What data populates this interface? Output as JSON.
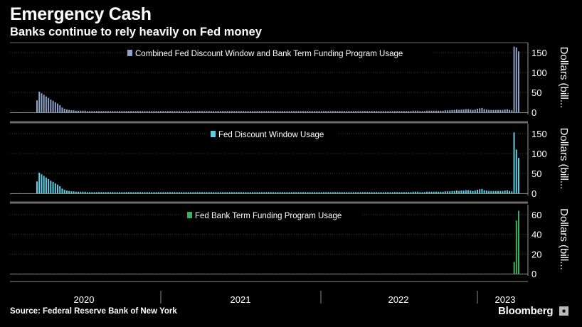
{
  "header": {
    "title": "Emergency Cash",
    "subtitle": "Banks continue to rely heavily on Fed money"
  },
  "footer": {
    "source": "Source: Federal Reserve Bank of New York",
    "brand": "Bloomberg"
  },
  "colors": {
    "background": "#000000",
    "combined": "#8ea2c8",
    "discount": "#5fcde3",
    "btfp": "#3dae5f",
    "grid": "#3a3a3a",
    "separator": "#6b6b6b"
  },
  "chart_data": [
    {
      "type": "bar",
      "legend": "Combined Fed Discount Window and Bank Term Funding Program Usage",
      "ylabel": "Dollars (bill...",
      "yticks": [
        0,
        50,
        100,
        150
      ],
      "ylim": [
        0,
        170
      ],
      "color": "#8ea2c8",
      "values": [
        30,
        52,
        48,
        44,
        40,
        36,
        32,
        29,
        25,
        22,
        18,
        12,
        9,
        7,
        6,
        5,
        5,
        4,
        4,
        4,
        4,
        4,
        3,
        3,
        3,
        3,
        3,
        3,
        3,
        3,
        3,
        3,
        3,
        3,
        3,
        3,
        3,
        3,
        3,
        3,
        3,
        3,
        3,
        3,
        3,
        3,
        3,
        3,
        3,
        3,
        3,
        3,
        3,
        3,
        3,
        3,
        3,
        3,
        3,
        3,
        3,
        3,
        3,
        3,
        3,
        3,
        3,
        3,
        3,
        3,
        3,
        3,
        3,
        3,
        3,
        3,
        3,
        3,
        3,
        3,
        3,
        3,
        3,
        3,
        3,
        3,
        3,
        3,
        3,
        3,
        3,
        3,
        3,
        3,
        3,
        3,
        3,
        3,
        3,
        3,
        3,
        3,
        3,
        3,
        3,
        3,
        3,
        3,
        3,
        3,
        3,
        3,
        3,
        3,
        3,
        3,
        3,
        3,
        3,
        3,
        3,
        3,
        3,
        3,
        3,
        3,
        3,
        3,
        3,
        3,
        3,
        3,
        3,
        3,
        3,
        3,
        3,
        3,
        3,
        3,
        3,
        3,
        3,
        3,
        3,
        3,
        3,
        3,
        3,
        3,
        3,
        3,
        3,
        3,
        3,
        3,
        3,
        3,
        3,
        3,
        3,
        3,
        3,
        3,
        4,
        4,
        4,
        3,
        3,
        3,
        4,
        4,
        4,
        4,
        4,
        4,
        4,
        4,
        5,
        5,
        5,
        6,
        6,
        7,
        6,
        7,
        7,
        8,
        8,
        7,
        6,
        7,
        9,
        10,
        11,
        8,
        7,
        6,
        6,
        6,
        6,
        6,
        6,
        6,
        7,
        8,
        6,
        5,
        165,
        163,
        153
      ]
    },
    {
      "type": "bar",
      "legend": "Fed Discount Window Usage",
      "ylabel": "Dollars (bill...",
      "yticks": [
        0,
        50,
        100,
        150
      ],
      "ylim": [
        0,
        170
      ],
      "color": "#5fcde3",
      "values": [
        30,
        52,
        48,
        44,
        40,
        36,
        32,
        29,
        25,
        22,
        18,
        12,
        9,
        7,
        6,
        5,
        5,
        4,
        4,
        4,
        4,
        4,
        3,
        3,
        3,
        3,
        3,
        3,
        3,
        3,
        3,
        3,
        3,
        3,
        3,
        3,
        3,
        3,
        3,
        3,
        3,
        3,
        3,
        3,
        3,
        3,
        3,
        3,
        3,
        3,
        3,
        3,
        3,
        3,
        3,
        3,
        3,
        3,
        3,
        3,
        3,
        3,
        3,
        3,
        3,
        3,
        3,
        3,
        3,
        3,
        3,
        3,
        3,
        3,
        3,
        3,
        3,
        3,
        3,
        3,
        3,
        3,
        3,
        3,
        3,
        3,
        3,
        3,
        3,
        3,
        3,
        3,
        3,
        3,
        3,
        3,
        3,
        3,
        3,
        3,
        3,
        3,
        3,
        3,
        3,
        3,
        3,
        3,
        3,
        3,
        3,
        3,
        3,
        3,
        3,
        3,
        3,
        3,
        3,
        3,
        3,
        3,
        3,
        3,
        3,
        3,
        3,
        3,
        3,
        3,
        3,
        3,
        3,
        3,
        3,
        3,
        3,
        3,
        3,
        3,
        3,
        3,
        3,
        3,
        3,
        3,
        3,
        3,
        3,
        3,
        3,
        3,
        3,
        3,
        3,
        3,
        3,
        3,
        3,
        3,
        3,
        3,
        3,
        3,
        4,
        4,
        4,
        3,
        3,
        3,
        4,
        4,
        4,
        4,
        4,
        4,
        4,
        4,
        5,
        5,
        5,
        6,
        6,
        7,
        6,
        7,
        7,
        8,
        8,
        7,
        6,
        7,
        9,
        10,
        11,
        8,
        7,
        6,
        6,
        6,
        6,
        6,
        6,
        6,
        7,
        8,
        6,
        5,
        153,
        110,
        89
      ]
    },
    {
      "type": "bar",
      "legend": "Fed Bank Term Funding Program Usage",
      "ylabel": "Dollars (bill...",
      "yticks": [
        0,
        20,
        40,
        60
      ],
      "ylim": [
        0,
        68
      ],
      "color": "#3dae5f",
      "values": [
        0,
        0,
        0,
        0,
        0,
        0,
        0,
        0,
        0,
        0,
        0,
        0,
        0,
        0,
        0,
        0,
        0,
        0,
        0,
        0,
        0,
        0,
        0,
        0,
        0,
        0,
        0,
        0,
        0,
        0,
        0,
        0,
        0,
        0,
        0,
        0,
        0,
        0,
        0,
        0,
        0,
        0,
        0,
        0,
        0,
        0,
        0,
        0,
        0,
        0,
        0,
        0,
        0,
        0,
        0,
        0,
        0,
        0,
        0,
        0,
        0,
        0,
        0,
        0,
        0,
        0,
        0,
        0,
        0,
        0,
        0,
        0,
        0,
        0,
        0,
        0,
        0,
        0,
        0,
        0,
        0,
        0,
        0,
        0,
        0,
        0,
        0,
        0,
        0,
        0,
        0,
        0,
        0,
        0,
        0,
        0,
        0,
        0,
        0,
        0,
        0,
        0,
        0,
        0,
        0,
        0,
        0,
        0,
        0,
        0,
        0,
        0,
        0,
        0,
        0,
        0,
        0,
        0,
        0,
        0,
        0,
        0,
        0,
        0,
        0,
        0,
        0,
        0,
        0,
        0,
        0,
        0,
        0,
        0,
        0,
        0,
        0,
        0,
        0,
        0,
        0,
        0,
        0,
        0,
        0,
        0,
        0,
        0,
        0,
        0,
        0,
        0,
        0,
        0,
        0,
        0,
        0,
        0,
        0,
        0,
        0,
        0,
        0,
        0,
        0,
        0,
        0,
        0,
        0,
        0,
        0,
        0,
        0,
        0,
        0,
        0,
        0,
        0,
        0,
        0,
        0,
        0,
        0,
        0,
        0,
        0,
        0,
        0,
        0,
        0,
        0,
        0,
        0,
        0,
        0,
        0,
        0,
        0,
        0,
        0,
        0,
        0,
        0,
        0,
        0,
        0,
        0,
        0,
        0,
        0,
        0,
        0,
        12,
        54,
        64
      ]
    }
  ],
  "x_axis": {
    "labels": [
      "2020",
      "2021",
      "2022",
      "2023"
    ]
  }
}
